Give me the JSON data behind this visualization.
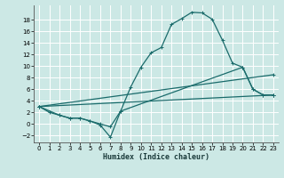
{
  "title": "",
  "xlabel": "Humidex (Indice chaleur)",
  "bg_color": "#cce8e5",
  "line_color": "#1a6b6b",
  "grid_color": "#ffffff",
  "xlim": [
    -0.5,
    23.5
  ],
  "ylim": [
    -3.2,
    20.5
  ],
  "xticks": [
    0,
    1,
    2,
    3,
    4,
    5,
    6,
    7,
    8,
    9,
    10,
    11,
    12,
    13,
    14,
    15,
    16,
    17,
    18,
    19,
    20,
    21,
    22,
    23
  ],
  "yticks": [
    -2,
    0,
    2,
    4,
    6,
    8,
    10,
    12,
    14,
    16,
    18
  ],
  "line1_x": [
    0,
    1,
    2,
    3,
    4,
    5,
    6,
    7,
    8,
    9,
    10,
    11,
    12,
    13,
    14,
    15,
    16,
    17,
    18,
    19,
    20,
    21,
    22,
    23
  ],
  "line1_y": [
    3,
    2,
    1.5,
    1,
    1,
    0.5,
    -0.2,
    -2.3,
    2.2,
    6.4,
    9.8,
    12.3,
    13.2,
    17.2,
    18.2,
    19.3,
    19.2,
    18.1,
    14.5,
    10.5,
    9.8,
    6.0,
    5.0,
    5.0
  ],
  "line2_x": [
    0,
    23
  ],
  "line2_y": [
    3,
    5.0
  ],
  "line3_x": [
    0,
    23
  ],
  "line3_y": [
    3,
    8.5
  ],
  "line4_x": [
    0,
    2,
    3,
    4,
    5,
    6,
    7,
    8,
    20,
    21,
    22,
    23
  ],
  "line4_y": [
    3,
    1.5,
    1,
    1,
    0.5,
    0,
    -0.5,
    2.2,
    9.8,
    6.0,
    5.0,
    5.0
  ],
  "marker": "+",
  "lw": 0.9,
  "ms": 2.5
}
